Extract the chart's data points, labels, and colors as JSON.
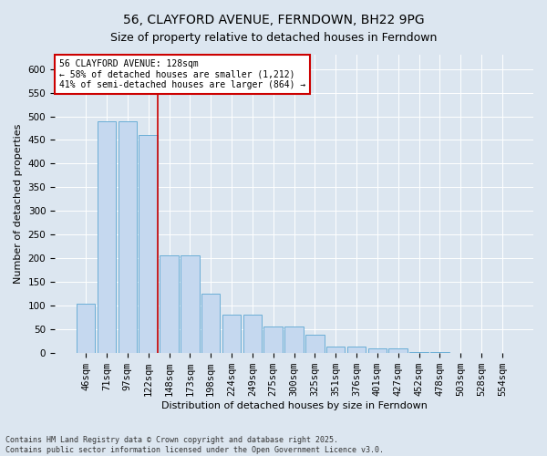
{
  "title": "56, CLAYFORD AVENUE, FERNDOWN, BH22 9PG",
  "subtitle": "Size of property relative to detached houses in Ferndown",
  "xlabel": "Distribution of detached houses by size in Ferndown",
  "ylabel": "Number of detached properties",
  "categories": [
    "46sqm",
    "71sqm",
    "97sqm",
    "122sqm",
    "148sqm",
    "173sqm",
    "198sqm",
    "224sqm",
    "249sqm",
    "275sqm",
    "300sqm",
    "325sqm",
    "351sqm",
    "376sqm",
    "401sqm",
    "427sqm",
    "452sqm",
    "478sqm",
    "503sqm",
    "528sqm",
    "554sqm"
  ],
  "values": [
    105,
    490,
    490,
    460,
    207,
    207,
    125,
    82,
    82,
    57,
    57,
    38,
    13,
    13,
    10,
    10,
    3,
    3,
    0,
    0,
    0
  ],
  "bar_color": "#c5d8ef",
  "bar_edge_color": "#6baed6",
  "property_line_color": "#cc0000",
  "annotation_text": "56 CLAYFORD AVENUE: 128sqm\n← 58% of detached houses are smaller (1,212)\n41% of semi-detached houses are larger (864) →",
  "annotation_box_facecolor": "#ffffff",
  "annotation_box_edgecolor": "#cc0000",
  "ylim": [
    0,
    630
  ],
  "yticks": [
    0,
    50,
    100,
    150,
    200,
    250,
    300,
    350,
    400,
    450,
    500,
    550,
    600
  ],
  "bg_color": "#dce6f0",
  "plot_bg_color": "#dce6f0",
  "grid_color": "#ffffff",
  "footer_text": "Contains HM Land Registry data © Crown copyright and database right 2025.\nContains public sector information licensed under the Open Government Licence v3.0.",
  "title_fontsize": 10,
  "xlabel_fontsize": 8,
  "ylabel_fontsize": 8,
  "tick_fontsize": 7.5,
  "annotation_fontsize": 7,
  "footer_fontsize": 6
}
